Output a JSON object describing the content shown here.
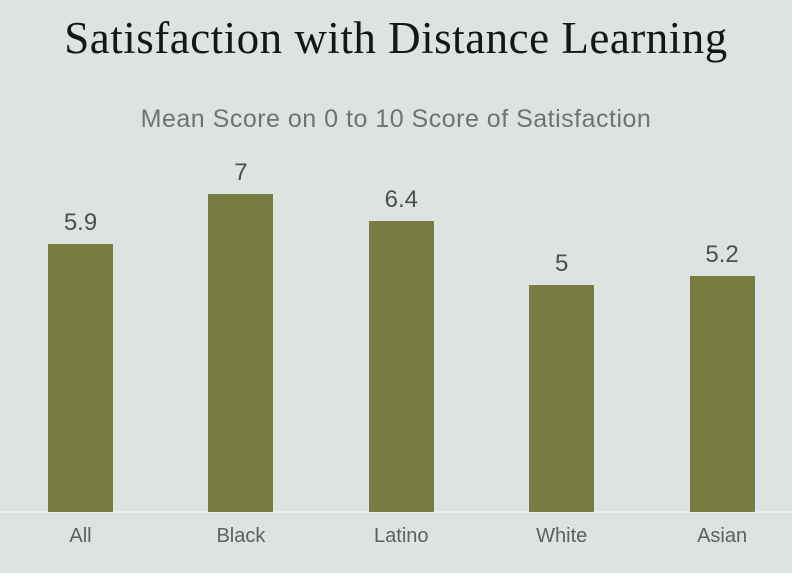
{
  "page": {
    "background_color": "#dce3e1"
  },
  "chart_data": {
    "type": "bar",
    "orientation": "vertical",
    "title": "Satisfaction with Distance Learning",
    "subtitle": "Mean Score on 0 to 10 Score of Satisfaction",
    "categories": [
      "All",
      "Black",
      "Latino",
      "White",
      "Asian"
    ],
    "values": [
      5.9,
      7,
      6.4,
      5,
      5.2
    ],
    "value_labels": [
      "5.9",
      "7",
      "6.4",
      "5",
      "5.2"
    ],
    "ylim": [
      0,
      7.8
    ],
    "grid": false,
    "legend": false,
    "axis_line_shown": true,
    "colors": {
      "bar": "#777d40",
      "title": "#161616",
      "subtitle": "#6f7472",
      "value_label": "#4b504e",
      "category_label": "#5c6160",
      "baseline": "#eceeed",
      "background": "#dce3e1"
    }
  }
}
